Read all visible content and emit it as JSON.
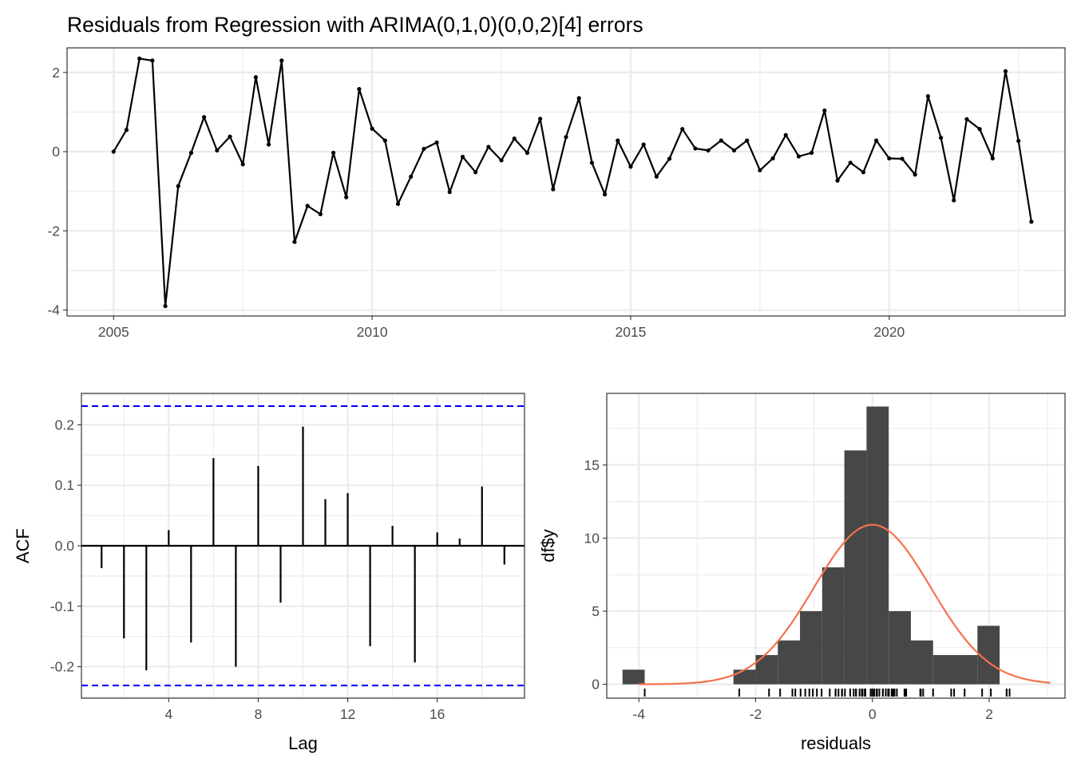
{
  "chart_data": [
    {
      "type": "line",
      "title": "Residuals from Regression with ARIMA(0,1,0)(0,0,2)[4] errors",
      "xlabel": "",
      "ylabel": "",
      "x_start": 2005.0,
      "x_step": 0.25,
      "xlim": [
        2004.1,
        2023.4
      ],
      "ylim": [
        -4.15,
        2.62
      ],
      "xticks": [
        2005,
        2010,
        2015,
        2020
      ],
      "yticks": [
        -4,
        -2,
        0,
        2
      ],
      "grid": true,
      "series": [
        {
          "color": "#000000",
          "values": [
            0.0,
            0.55,
            2.35,
            2.3,
            -3.9,
            -0.87,
            -0.03,
            0.87,
            0.03,
            0.38,
            -0.32,
            1.88,
            0.18,
            2.3,
            -2.28,
            -1.37,
            -1.58,
            -0.03,
            -1.15,
            1.58,
            0.58,
            0.28,
            -1.32,
            -0.63,
            0.07,
            0.23,
            -1.02,
            -0.13,
            -0.52,
            0.12,
            -0.22,
            0.33,
            -0.03,
            0.83,
            -0.95,
            0.37,
            1.35,
            -0.28,
            -1.08,
            0.28,
            -0.38,
            0.18,
            -0.63,
            -0.18,
            0.57,
            0.08,
            0.03,
            0.28,
            0.03,
            0.28,
            -0.47,
            -0.17,
            0.42,
            -0.12,
            -0.03,
            1.04,
            -0.73,
            -0.28,
            -0.52,
            0.28,
            -0.17,
            -0.18,
            -0.58,
            1.4,
            0.35,
            -1.23,
            0.82,
            0.57,
            -0.17,
            2.03,
            0.27,
            -1.77
          ]
        }
      ]
    },
    {
      "type": "bar",
      "title": "",
      "xlabel": "Lag",
      "ylabel": "ACF",
      "lags": [
        1,
        2,
        3,
        4,
        5,
        6,
        7,
        8,
        9,
        10,
        11,
        12,
        13,
        14,
        15,
        16,
        17,
        18,
        19
      ],
      "values": [
        -0.037,
        -0.153,
        -0.206,
        0.026,
        -0.16,
        0.145,
        -0.2,
        0.132,
        -0.094,
        0.197,
        0.077,
        0.087,
        -0.166,
        0.033,
        -0.193,
        0.022,
        0.012,
        0.098,
        -0.031
      ],
      "confidence_bound": 0.231,
      "xlim": [
        0.1,
        19.9
      ],
      "ylim": [
        -0.252,
        0.252
      ],
      "xticks": [
        4,
        8,
        12,
        16
      ],
      "yticks": [
        -0.2,
        -0.1,
        0.0,
        0.1,
        0.2
      ],
      "ytick_labels": [
        "-0.2",
        "-0.1",
        "0.0",
        "0.1",
        "0.2"
      ],
      "bound_color": "#0000ff",
      "grid": true
    },
    {
      "type": "histogram",
      "title": "",
      "xlabel": "residuals",
      "ylabel": "df$y",
      "bin_width": 0.38,
      "bin_start": -4.28,
      "bin_counts": [
        1,
        0,
        0,
        0,
        0,
        1,
        2,
        3,
        5,
        8,
        16,
        19,
        5,
        3,
        2,
        2,
        4
      ],
      "bar_color": "#474747",
      "density_curve": {
        "color": "#f4734b",
        "mean": 0,
        "sd": 1.0,
        "n": 72,
        "x_range": [
          -4.0,
          3.05
        ]
      },
      "rug": [
        -3.9,
        -2.28,
        -1.77,
        -1.58,
        -1.37,
        -1.32,
        -1.23,
        -1.15,
        -1.08,
        -1.02,
        -0.95,
        -0.87,
        -0.73,
        -0.63,
        -0.63,
        -0.58,
        -0.52,
        -0.52,
        -0.47,
        -0.38,
        -0.32,
        -0.28,
        -0.28,
        -0.22,
        -0.18,
        -0.18,
        -0.17,
        -0.17,
        -0.13,
        -0.12,
        -0.03,
        -0.03,
        -0.03,
        0.0,
        0.03,
        0.03,
        0.07,
        0.08,
        0.12,
        0.18,
        0.18,
        0.23,
        0.27,
        0.28,
        0.28,
        0.28,
        0.28,
        0.33,
        0.35,
        0.37,
        0.38,
        0.42,
        0.55,
        0.57,
        0.57,
        0.58,
        0.82,
        0.83,
        0.87,
        1.04,
        1.35,
        1.4,
        1.58,
        1.88,
        2.03,
        2.3,
        2.3,
        2.35
      ],
      "xlim": [
        -4.55,
        3.3
      ],
      "ylim": [
        -0.95,
        19.9
      ],
      "xticks": [
        -4,
        -2,
        0,
        2
      ],
      "yticks": [
        0,
        5,
        10,
        15
      ],
      "grid": true
    }
  ]
}
